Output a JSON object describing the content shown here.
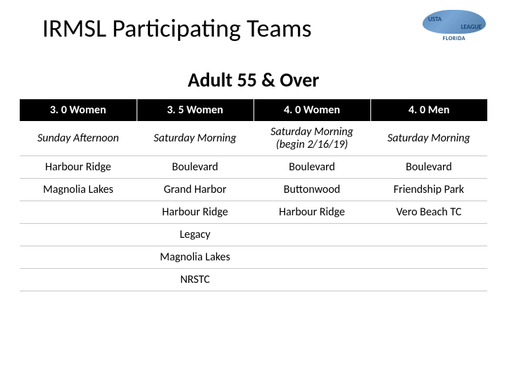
{
  "title": "IRMSL Participating Teams",
  "logo": {
    "top_text": "USTA",
    "bottom_text": "LEAGUE",
    "sub_text": "FLORIDA"
  },
  "subtitle": "Adult 55 & Over",
  "table": {
    "headers": [
      "3. 0 Women",
      "3. 5 Women",
      "4. 0 Women",
      "4. 0 Men"
    ],
    "rows": [
      {
        "cells": [
          {
            "text": "Sunday Afternoon",
            "italic": true
          },
          {
            "text": "Saturday Morning",
            "italic": true
          },
          {
            "text": "Saturday Morning",
            "sub": "(begin 2/16/19)",
            "italic": true
          },
          {
            "text": "Saturday Morning",
            "italic": true
          }
        ]
      },
      {
        "cells": [
          {
            "text": "Harbour Ridge"
          },
          {
            "text": "Boulevard"
          },
          {
            "text": "Boulevard"
          },
          {
            "text": "Boulevard"
          }
        ]
      },
      {
        "cells": [
          {
            "text": "Magnolia Lakes"
          },
          {
            "text": "Grand Harbor"
          },
          {
            "text": "Buttonwood"
          },
          {
            "text": "Friendship Park"
          }
        ]
      },
      {
        "cells": [
          {
            "text": ""
          },
          {
            "text": "Harbour Ridge"
          },
          {
            "text": "Harbour Ridge"
          },
          {
            "text": "Vero Beach TC"
          }
        ]
      },
      {
        "cells": [
          {
            "text": ""
          },
          {
            "text": "Legacy"
          },
          {
            "text": ""
          },
          {
            "text": ""
          }
        ]
      },
      {
        "cells": [
          {
            "text": ""
          },
          {
            "text": "Magnolia Lakes"
          },
          {
            "text": ""
          },
          {
            "text": ""
          }
        ]
      },
      {
        "cells": [
          {
            "text": ""
          },
          {
            "text": "NRSTC"
          },
          {
            "text": ""
          },
          {
            "text": ""
          }
        ]
      }
    ]
  }
}
